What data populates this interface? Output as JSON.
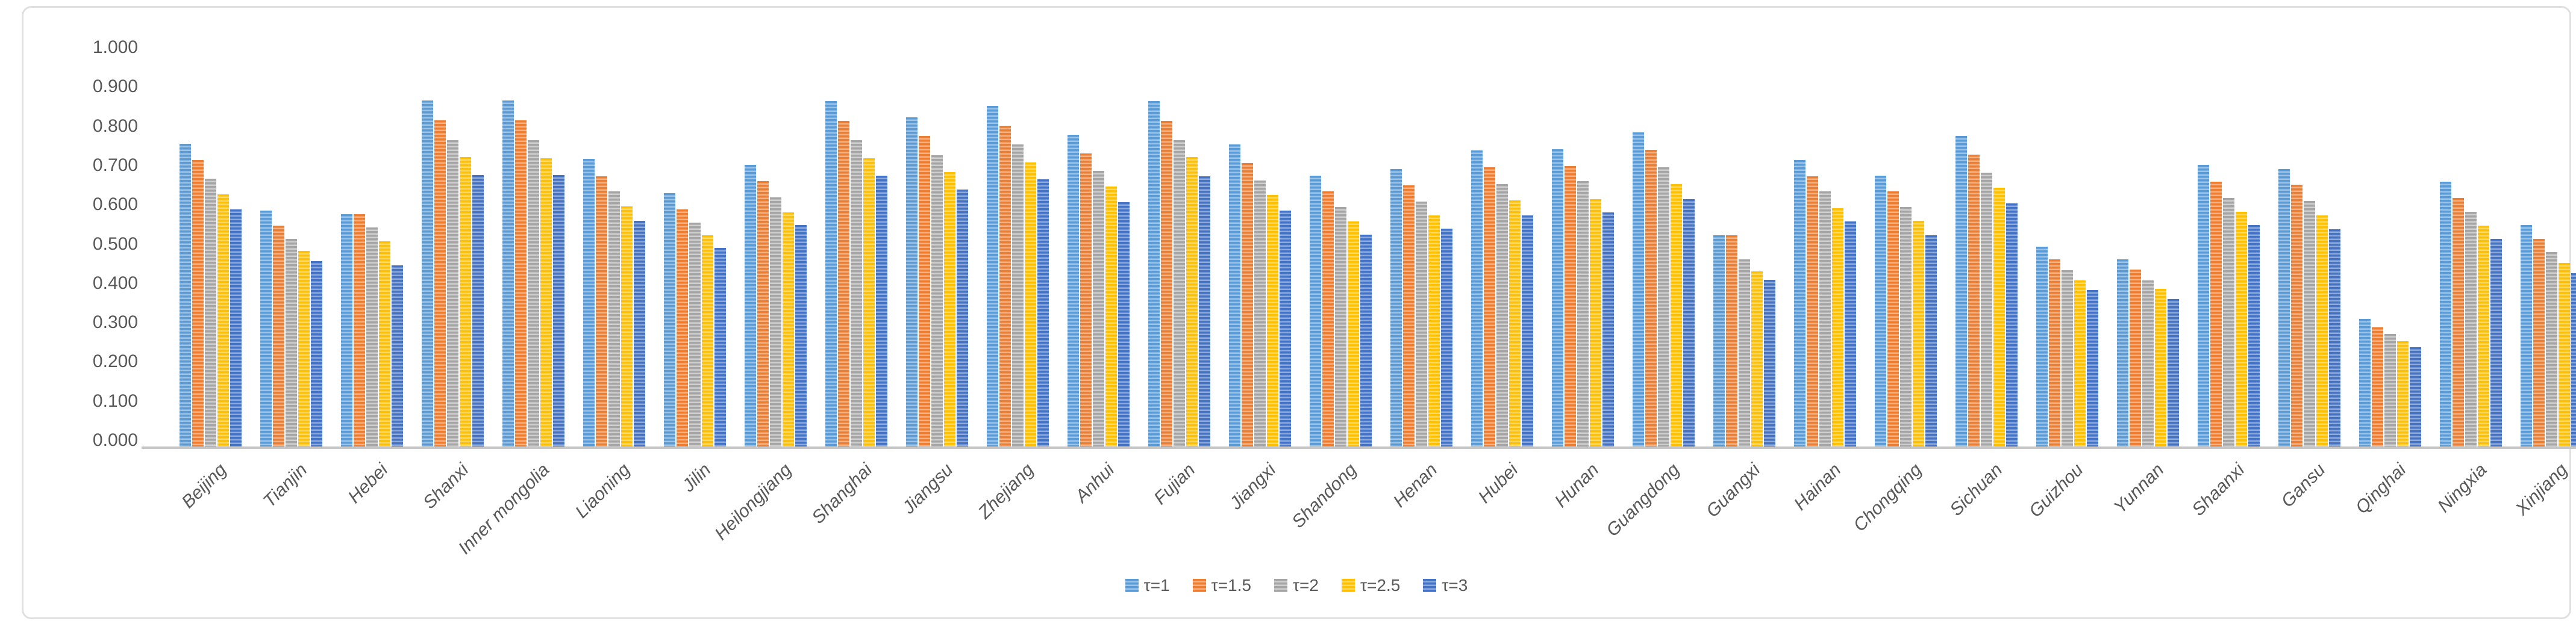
{
  "chart_data": {
    "type": "bar",
    "title": "",
    "xlabel": "",
    "ylabel": "",
    "ylim": [
      0.0,
      1.0
    ],
    "ytick_step": 0.1,
    "ytick_labels": [
      "0.000",
      "0.100",
      "0.200",
      "0.300",
      "0.400",
      "0.500",
      "0.600",
      "0.700",
      "0.800",
      "0.900",
      "1.000"
    ],
    "grid": false,
    "legend_position": "bottom-center",
    "bar_texture": "horizontal-stripes",
    "categories": [
      "Beijing",
      "Tianjin",
      "Hebei",
      "Shanxi",
      "Inner mongolia",
      "Liaoning",
      "Jilin",
      "Heilongjiang",
      "Shanghai",
      "Jiangsu",
      "Zhejiang",
      "Anhui",
      "Fujian",
      "Jiangxi",
      "Shandong",
      "Henan",
      "Hubei",
      "Hunan",
      "Guangdong",
      "Guangxi",
      "Hainan",
      "Chongqing",
      "Sichuan",
      "Guizhou",
      "Yunnan",
      "Shaanxi",
      "Gansu",
      "Qinghai",
      "Ningxia",
      "Xinjiang"
    ],
    "series": [
      {
        "name": "τ=1",
        "color": "#5B9BD5",
        "stripe_color": "#9DC3E6",
        "values": [
          0.77,
          0.6,
          0.591,
          0.881,
          0.88,
          0.732,
          0.644,
          0.717,
          0.879,
          0.837,
          0.867,
          0.794,
          0.879,
          0.768,
          0.689,
          0.706,
          0.753,
          0.757,
          0.799,
          0.538,
          0.729,
          0.689,
          0.79,
          0.508,
          0.477,
          0.717,
          0.706,
          0.324,
          0.674,
          0.563
        ]
      },
      {
        "name": "τ=1.5",
        "color": "#ED7D31",
        "stripe_color": "#F4B183",
        "values": [
          0.729,
          0.562,
          0.591,
          0.83,
          0.83,
          0.687,
          0.603,
          0.675,
          0.828,
          0.79,
          0.816,
          0.746,
          0.828,
          0.721,
          0.649,
          0.664,
          0.711,
          0.714,
          0.755,
          0.538,
          0.687,
          0.65,
          0.743,
          0.477,
          0.45,
          0.674,
          0.666,
          0.303,
          0.633,
          0.529
        ]
      },
      {
        "name": "τ=2",
        "color": "#A5A5A5",
        "stripe_color": "#CFCFCF",
        "values": [
          0.682,
          0.528,
          0.557,
          0.78,
          0.78,
          0.649,
          0.569,
          0.634,
          0.779,
          0.741,
          0.768,
          0.702,
          0.779,
          0.677,
          0.61,
          0.624,
          0.668,
          0.675,
          0.71,
          0.477,
          0.65,
          0.61,
          0.697,
          0.449,
          0.423,
          0.633,
          0.625,
          0.287,
          0.598,
          0.494
        ]
      },
      {
        "name": "τ=2.5",
        "color": "#FFC000",
        "stripe_color": "#FFD966",
        "values": [
          0.641,
          0.498,
          0.522,
          0.736,
          0.734,
          0.611,
          0.537,
          0.596,
          0.734,
          0.699,
          0.723,
          0.661,
          0.736,
          0.64,
          0.573,
          0.588,
          0.627,
          0.63,
          0.667,
          0.446,
          0.607,
          0.574,
          0.658,
          0.423,
          0.401,
          0.598,
          0.588,
          0.268,
          0.562,
          0.467
        ]
      },
      {
        "name": "τ=3",
        "color": "#4472C4",
        "stripe_color": "#8EAADB",
        "values": [
          0.603,
          0.472,
          0.461,
          0.691,
          0.69,
          0.575,
          0.505,
          0.564,
          0.689,
          0.654,
          0.68,
          0.621,
          0.687,
          0.601,
          0.539,
          0.555,
          0.588,
          0.596,
          0.629,
          0.424,
          0.573,
          0.538,
          0.618,
          0.398,
          0.375,
          0.563,
          0.553,
          0.253,
          0.529,
          0.441
        ]
      }
    ]
  }
}
